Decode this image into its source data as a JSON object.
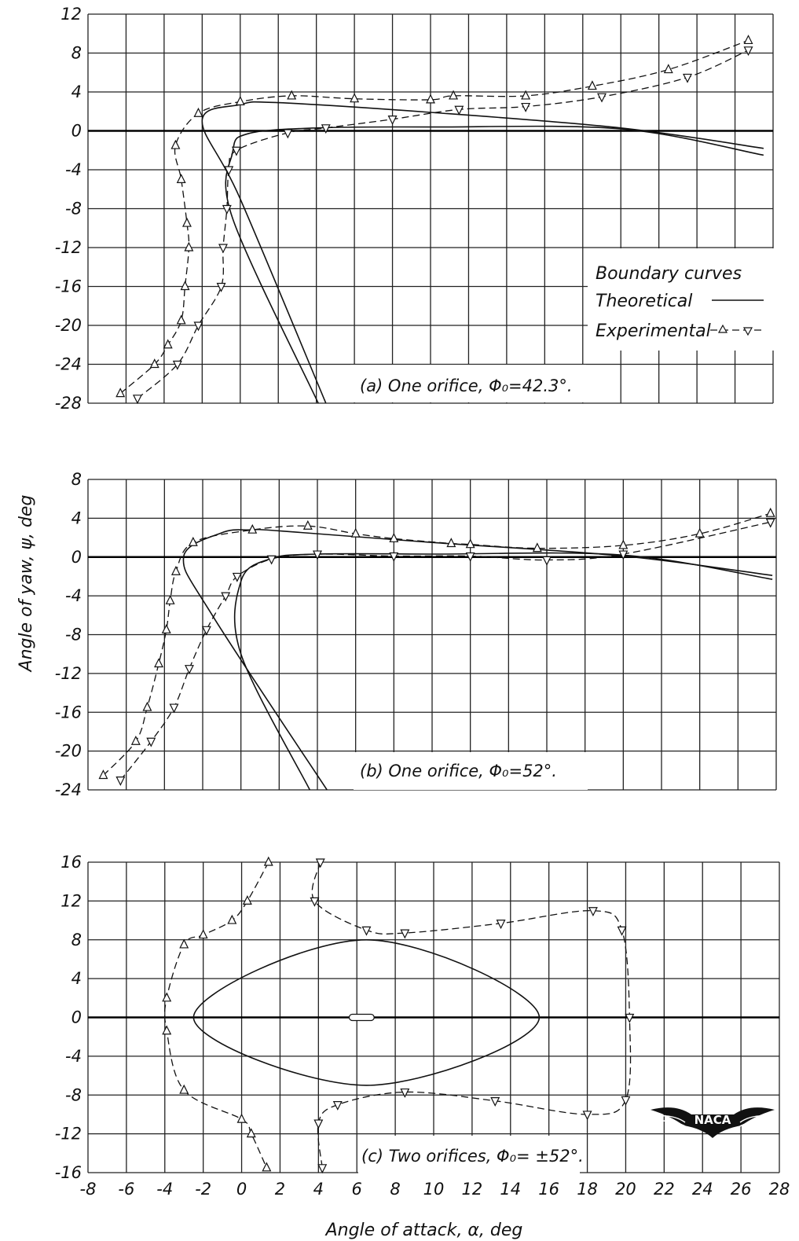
{
  "chart_data": [
    {
      "id": "a",
      "type": "line",
      "title": "(a) One orifice, Φ₀=42.3°.",
      "xlim": [
        -8,
        28
      ],
      "ylim": [
        -28,
        12
      ],
      "yticks": [
        "12",
        "8",
        "4",
        "0",
        "-4",
        "-8",
        "-12",
        "-16",
        "-20",
        "-24",
        "-28"
      ],
      "grid": true,
      "legend": {
        "placement": "right",
        "title": "Boundary curves",
        "entries": [
          "Theoretical",
          "Experimental"
        ]
      },
      "series": [
        {
          "name": "Theoretical",
          "values": [
            [
              4.5,
              -28
            ],
            [
              0,
              -7
            ],
            [
              -2,
              1
            ],
            [
              0,
              2.7
            ],
            [
              2,
              2.9
            ],
            [
              10,
              1.9
            ],
            [
              20,
              0.3
            ],
            [
              27.5,
              -1.8
            ]
          ]
        },
        {
          "name": "Theoretical",
          "values": [
            [
              4.1,
              -28
            ],
            [
              -0.4,
              -9
            ],
            [
              -0.4,
              -2.2
            ],
            [
              0.4,
              -0.3
            ],
            [
              4,
              0.3
            ],
            [
              10,
              0.4
            ],
            [
              20,
              0.2
            ],
            [
              27.5,
              -2.5
            ]
          ]
        },
        {
          "name": "Experimental",
          "marker": "triangle-up",
          "values": [
            [
              -6.3,
              -27
            ],
            [
              -4.5,
              -24
            ],
            [
              -3.8,
              -22
            ],
            [
              -3.1,
              -19.5
            ],
            [
              -2.9,
              -16
            ],
            [
              -2.7,
              -12
            ],
            [
              -2.8,
              -9.5
            ],
            [
              -3.1,
              -5
            ],
            [
              -3.4,
              -1.5
            ],
            [
              -2.2,
              1.8
            ],
            [
              0,
              3
            ],
            [
              2.7,
              3.6
            ],
            [
              6,
              3.3
            ],
            [
              10,
              3.2
            ],
            [
              11.2,
              3.6
            ],
            [
              15,
              3.6
            ],
            [
              18.5,
              4.6
            ],
            [
              22.5,
              6.3
            ],
            [
              26.7,
              9.3
            ]
          ]
        },
        {
          "name": "Experimental",
          "marker": "triangle-down",
          "values": [
            [
              -5.4,
              -27.5
            ],
            [
              -3.3,
              -24
            ],
            [
              -2.2,
              -20
            ],
            [
              -1,
              -16
            ],
            [
              -0.9,
              -12
            ],
            [
              -0.7,
              -8
            ],
            [
              -0.6,
              -4
            ],
            [
              -0.2,
              -2
            ],
            [
              2.5,
              -0.2
            ],
            [
              4.5,
              0.3
            ],
            [
              8,
              1.2
            ],
            [
              11.5,
              2.2
            ],
            [
              15,
              2.5
            ],
            [
              19,
              3.5
            ],
            [
              23.5,
              5.5
            ],
            [
              26.7,
              8.3
            ]
          ]
        }
      ]
    },
    {
      "id": "b",
      "type": "line",
      "title": "(b) One orifice, Φ₀=52°.",
      "xlim": [
        -8,
        28
      ],
      "ylim": [
        -24,
        8
      ],
      "yticks": [
        "8",
        "4",
        "0",
        "-4",
        "-8",
        "-12",
        "-16",
        "-20",
        "-24"
      ],
      "grid": true,
      "series": [
        {
          "name": "Theoretical",
          "values": [
            [
              4.5,
              -24
            ],
            [
              -1.5,
              -6
            ],
            [
              -3,
              0
            ],
            [
              -1,
              2.5
            ],
            [
              0.5,
              2.8
            ],
            [
              2,
              2.7
            ],
            [
              10,
              1.5
            ],
            [
              20,
              0.1
            ],
            [
              27.8,
              -1.9
            ]
          ]
        },
        {
          "name": "Theoretical",
          "values": [
            [
              3.6,
              -24
            ],
            [
              0,
              -10
            ],
            [
              0,
              -2.5
            ],
            [
              1.5,
              -0.2
            ],
            [
              4,
              0.3
            ],
            [
              10,
              0.3
            ],
            [
              20,
              0.2
            ],
            [
              27.8,
              -2.3
            ]
          ]
        },
        {
          "name": "Experimental",
          "marker": "triangle-up",
          "values": [
            [
              -7.2,
              -22.5
            ],
            [
              -5.5,
              -19
            ],
            [
              -4.9,
              -15.5
            ],
            [
              -4.3,
              -11
            ],
            [
              -3.9,
              -7.5
            ],
            [
              -3.7,
              -4.5
            ],
            [
              -3.4,
              -1.5
            ],
            [
              -2.5,
              1.5
            ],
            [
              0.6,
              2.8
            ],
            [
              3.5,
              3.2
            ],
            [
              6,
              2.4
            ],
            [
              8,
              1.9
            ],
            [
              11,
              1.4
            ],
            [
              12,
              1.3
            ],
            [
              15.5,
              0.9
            ],
            [
              20,
              1.2
            ],
            [
              24,
              2.4
            ],
            [
              27.7,
              4.5
            ]
          ]
        },
        {
          "name": "Experimental",
          "marker": "triangle-down",
          "values": [
            [
              -6.3,
              -23
            ],
            [
              -4.7,
              -19
            ],
            [
              -3.5,
              -15.5
            ],
            [
              -2.7,
              -11.5
            ],
            [
              -1.8,
              -7.5
            ],
            [
              -0.8,
              -4
            ],
            [
              -0.2,
              -2
            ],
            [
              1.6,
              -0.2
            ],
            [
              4,
              0.3
            ],
            [
              8,
              0.1
            ],
            [
              12,
              0.1
            ],
            [
              16,
              -0.3
            ],
            [
              20,
              0.3
            ],
            [
              27.7,
              3.6
            ]
          ]
        }
      ]
    },
    {
      "id": "c",
      "type": "line",
      "title": "(c) Two orifices, Φ₀= ±52°.",
      "xlim": [
        -8,
        28
      ],
      "ylim": [
        -16,
        16
      ],
      "yticks": [
        "16",
        "12",
        "8",
        "4",
        "0",
        "-4",
        "-8",
        "-12",
        "-16"
      ],
      "xticks": [
        "-8",
        "-6",
        "-4",
        "-2",
        "0",
        "2",
        "4",
        "6",
        "8",
        "10",
        "12",
        "14",
        "16",
        "18",
        "20",
        "22",
        "24",
        "26",
        "28"
      ],
      "xlabel": "Angle of attack, α, deg",
      "grid": true,
      "series": [
        {
          "name": "Theoretical",
          "values": [
            [
              6.5,
              8
            ],
            [
              15.5,
              0
            ],
            [
              6.5,
              -7
            ],
            [
              -2.5,
              0
            ]
          ]
        },
        {
          "name": "Experimental",
          "marker": "triangle-up",
          "values": [
            [
              1.4,
              16
            ],
            [
              0.3,
              12
            ],
            [
              -0.5,
              10
            ],
            [
              -2,
              8.5
            ],
            [
              -3,
              7.5
            ],
            [
              -3.9,
              2
            ],
            [
              -3.9,
              -1.4
            ],
            [
              -3,
              -7.5
            ],
            [
              0,
              -10.5
            ],
            [
              0.5,
              -12
            ],
            [
              1.3,
              -15.5
            ]
          ]
        },
        {
          "name": "Experimental",
          "marker": "triangle-down",
          "values": [
            [
              4.1,
              16
            ],
            [
              3.8,
              12
            ],
            [
              6.5,
              9
            ],
            [
              8.5,
              8.7
            ],
            [
              13.5,
              9.7
            ],
            [
              18.3,
              11
            ],
            [
              19.8,
              9
            ],
            [
              20.2,
              0
            ],
            [
              20,
              -8.5
            ],
            [
              18,
              -10
            ],
            [
              13.2,
              -8.6
            ],
            [
              8.5,
              -7.7
            ],
            [
              5,
              -9
            ],
            [
              4,
              -10.9
            ],
            [
              4.2,
              -15.5
            ]
          ]
        }
      ]
    }
  ],
  "shared": {
    "ylabel": "Angle of yaw, ψ, deg"
  },
  "logo": {
    "text": "NACA"
  }
}
